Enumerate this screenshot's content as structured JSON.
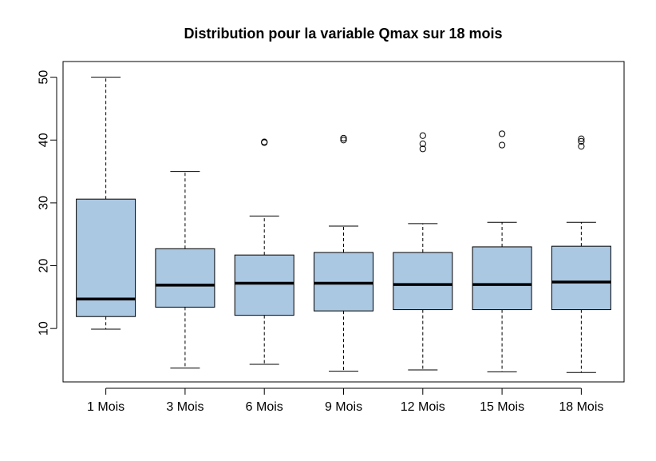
{
  "chart_data": {
    "type": "boxplot",
    "title": "Distribution pour la variable Qmax sur 18 mois",
    "xlabel": "",
    "ylabel": "",
    "categories": [
      "1 Mois",
      "3 Mois",
      "6 Mois",
      "9 Mois",
      "12  Mois",
      "15 Mois",
      "18 Mois"
    ],
    "ylim": [
      1.5,
      52.5
    ],
    "yticks": [
      10,
      20,
      30,
      40,
      50
    ],
    "box_color": "#abc8e2",
    "grid": false,
    "boxes": [
      {
        "category": "1 Mois",
        "whisker_low": 9.9,
        "q1": 11.9,
        "median": 14.7,
        "q3": 30.6,
        "whisker_high": 50.0,
        "outliers": []
      },
      {
        "category": "3 Mois",
        "whisker_low": 3.7,
        "q1": 13.4,
        "median": 16.9,
        "q3": 22.7,
        "whisker_high": 35.0,
        "outliers": []
      },
      {
        "category": "6 Mois",
        "whisker_low": 4.3,
        "q1": 12.1,
        "median": 17.2,
        "q3": 21.7,
        "whisker_high": 27.9,
        "outliers": [
          39.6,
          39.7
        ]
      },
      {
        "category": "9 Mois",
        "whisker_low": 3.2,
        "q1": 12.8,
        "median": 17.2,
        "q3": 22.1,
        "whisker_high": 26.3,
        "outliers": [
          40.0,
          40.3
        ]
      },
      {
        "category": "12  Mois",
        "whisker_low": 3.4,
        "q1": 13.0,
        "median": 17.0,
        "q3": 22.1,
        "whisker_high": 26.7,
        "outliers": [
          38.6,
          39.4,
          40.7
        ]
      },
      {
        "category": "15 Mois",
        "whisker_low": 3.1,
        "q1": 13.0,
        "median": 17.0,
        "q3": 23.0,
        "whisker_high": 26.9,
        "outliers": [
          39.2,
          41.0
        ]
      },
      {
        "category": "18 Mois",
        "whisker_low": 3.0,
        "q1": 13.0,
        "median": 17.4,
        "q3": 23.1,
        "whisker_high": 26.9,
        "outliers": [
          39.0,
          39.8,
          40.2
        ]
      }
    ]
  }
}
